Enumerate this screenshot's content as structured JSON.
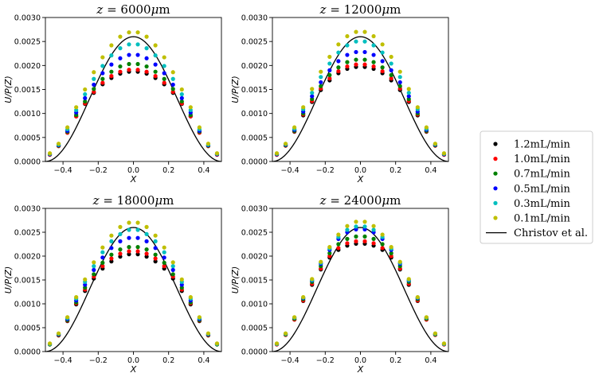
{
  "chart_data": {
    "type": "scatter",
    "x_ticks": [
      -0.4,
      -0.2,
      0.0,
      0.2,
      0.4
    ],
    "x_tick_labels": [
      "−0.4",
      "−0.2",
      "0.0",
      "0.2",
      "0.4"
    ],
    "y_ticks": [
      0,
      0.0005,
      0.001,
      0.0015,
      0.002,
      0.0025,
      0.003
    ],
    "y_tick_labels": [
      "0.0000",
      "0.0005",
      "0.0010",
      "0.0015",
      "0.0020",
      "0.0025",
      "0.0030"
    ],
    "xlim": [
      -0.5,
      0.5
    ],
    "ylim": [
      0,
      0.003
    ],
    "xlabel": "X",
    "ylabel": "U/P(Z)",
    "x_points": [
      -0.475,
      -0.425,
      -0.375,
      -0.325,
      -0.275,
      -0.225,
      -0.175,
      -0.125,
      -0.075,
      -0.025,
      0.025,
      0.075,
      0.125,
      0.175,
      0.225,
      0.275,
      0.325,
      0.375,
      0.425,
      0.475
    ],
    "series": [
      {
        "name": "1.2mL/min",
        "color": "#000000"
      },
      {
        "name": "1.0mL/min",
        "color": "#ff0000"
      },
      {
        "name": "0.7mL/min",
        "color": "#008000"
      },
      {
        "name": "0.5mL/min",
        "color": "#0000ff"
      },
      {
        "name": "0.3mL/min",
        "color": "#00bfbf"
      },
      {
        "name": "0.1mL/min",
        "color": "#bfbf00"
      }
    ],
    "reference_curve": {
      "name": "Christov et al.",
      "color": "#000000",
      "peak": 0.0026
    },
    "panels": [
      {
        "title_pre": "",
        "title_z": "z",
        "title_mid": " = 6000",
        "title_mu": "μ",
        "title_post": "m",
        "series": [
          {
            "name": "1.2mL/min",
            "values": [
              0.00014,
              0.00032,
              0.0006,
              0.00094,
              0.0012,
              0.00143,
              0.00161,
              0.00174,
              0.00183,
              0.00187,
              0.00187,
              0.00183,
              0.00174,
              0.00161,
              0.00143,
              0.0012,
              0.00094,
              0.0006,
              0.00032,
              0.00014
            ]
          },
          {
            "name": "1.0mL/min",
            "values": [
              0.00014,
              0.00032,
              0.0006,
              0.00094,
              0.00121,
              0.00145,
              0.00164,
              0.00178,
              0.00187,
              0.00191,
              0.00191,
              0.00187,
              0.00178,
              0.00164,
              0.00145,
              0.00121,
              0.00094,
              0.0006,
              0.00032,
              0.00014
            ]
          },
          {
            "name": "0.7mL/min",
            "values": [
              0.00015,
              0.00033,
              0.00062,
              0.00097,
              0.00125,
              0.00151,
              0.00172,
              0.00187,
              0.00198,
              0.00203,
              0.00203,
              0.00198,
              0.00187,
              0.00172,
              0.00151,
              0.00125,
              0.00097,
              0.00062,
              0.00033,
              0.00015
            ]
          },
          {
            "name": "0.5mL/min",
            "values": [
              0.00015,
              0.00034,
              0.00064,
              0.00102,
              0.00132,
              0.0016,
              0.00184,
              0.00202,
              0.00215,
              0.00222,
              0.00222,
              0.00215,
              0.00202,
              0.00184,
              0.0016,
              0.00132,
              0.00102,
              0.00064,
              0.00034,
              0.00015
            ]
          },
          {
            "name": "0.3mL/min",
            "values": [
              0.00016,
              0.00035,
              0.00067,
              0.00107,
              0.0014,
              0.00172,
              0.00199,
              0.00221,
              0.00236,
              0.00244,
              0.00244,
              0.00236,
              0.00221,
              0.00199,
              0.00172,
              0.0014,
              0.00107,
              0.00067,
              0.00035,
              0.00016
            ]
          },
          {
            "name": "0.1mL/min",
            "values": [
              0.00017,
              0.00037,
              0.00071,
              0.00113,
              0.0015,
              0.00186,
              0.00217,
              0.00242,
              0.0026,
              0.00269,
              0.00269,
              0.0026,
              0.00242,
              0.00217,
              0.00186,
              0.0015,
              0.00113,
              0.00071,
              0.00037,
              0.00017
            ]
          }
        ]
      },
      {
        "title_pre": "",
        "title_z": "z",
        "title_mid": " = 12000",
        "title_mu": "μ",
        "title_post": "m",
        "series": [
          {
            "name": "1.2mL/min",
            "values": [
              0.00014,
              0.00033,
              0.00062,
              0.00096,
              0.00124,
              0.00149,
              0.00169,
              0.00184,
              0.00193,
              0.00197,
              0.00197,
              0.00193,
              0.00184,
              0.00169,
              0.00149,
              0.00124,
              0.00096,
              0.00062,
              0.00033,
              0.00014
            ]
          },
          {
            "name": "1.0mL/min",
            "values": [
              0.00014,
              0.00033,
              0.00063,
              0.00098,
              0.00126,
              0.00152,
              0.00173,
              0.00188,
              0.00198,
              0.00202,
              0.00202,
              0.00198,
              0.00188,
              0.00173,
              0.00152,
              0.00126,
              0.00098,
              0.00063,
              0.00033,
              0.00014
            ]
          },
          {
            "name": "0.7mL/min",
            "values": [
              0.00015,
              0.00034,
              0.00064,
              0.001,
              0.0013,
              0.00157,
              0.0018,
              0.00196,
              0.00207,
              0.00212,
              0.00212,
              0.00207,
              0.00196,
              0.0018,
              0.00157,
              0.0013,
              0.001,
              0.00064,
              0.00034,
              0.00015
            ]
          },
          {
            "name": "0.5mL/min",
            "values": [
              0.00015,
              0.00035,
              0.00066,
              0.00104,
              0.00136,
              0.00165,
              0.0019,
              0.00209,
              0.00222,
              0.00228,
              0.00228,
              0.00222,
              0.00209,
              0.0019,
              0.00165,
              0.00136,
              0.00104,
              0.00066,
              0.00035,
              0.00015
            ]
          },
          {
            "name": "0.3mL/min",
            "values": [
              0.00016,
              0.00036,
              0.00068,
              0.00109,
              0.00143,
              0.00176,
              0.00204,
              0.00227,
              0.00242,
              0.0025,
              0.0025,
              0.00242,
              0.00227,
              0.00204,
              0.00176,
              0.00143,
              0.00109,
              0.00068,
              0.00036,
              0.00016
            ]
          },
          {
            "name": "0.1mL/min",
            "values": [
              0.00017,
              0.00037,
              0.00071,
              0.00113,
              0.00151,
              0.00187,
              0.00218,
              0.00244,
              0.00261,
              0.0027,
              0.0027,
              0.00261,
              0.00244,
              0.00218,
              0.00187,
              0.00151,
              0.00113,
              0.00071,
              0.00037,
              0.00017
            ]
          }
        ]
      },
      {
        "title_pre": "",
        "title_z": "z",
        "title_mid": " = 18000",
        "title_mu": "μ",
        "title_post": "m",
        "series": [
          {
            "name": "1.2mL/min",
            "values": [
              0.00015,
              0.00034,
              0.00064,
              0.00099,
              0.00127,
              0.00153,
              0.00174,
              0.00189,
              0.00199,
              0.00204,
              0.00204,
              0.00199,
              0.00189,
              0.00174,
              0.00153,
              0.00127,
              0.00099,
              0.00064,
              0.00034,
              0.00015
            ]
          },
          {
            "name": "1.0mL/min",
            "values": [
              0.00015,
              0.00034,
              0.00065,
              0.00101,
              0.0013,
              0.00157,
              0.00179,
              0.00195,
              0.00205,
              0.0021,
              0.0021,
              0.00205,
              0.00195,
              0.00179,
              0.00157,
              0.0013,
              0.00101,
              0.00065,
              0.00034,
              0.00015
            ]
          },
          {
            "name": "0.7mL/min",
            "values": [
              0.00015,
              0.00035,
              0.00066,
              0.00103,
              0.00134,
              0.00162,
              0.00186,
              0.00203,
              0.00214,
              0.00219,
              0.00219,
              0.00214,
              0.00203,
              0.00186,
              0.00162,
              0.00134,
              0.00103,
              0.00066,
              0.00035,
              0.00015
            ]
          },
          {
            "name": "0.5mL/min",
            "values": [
              0.00016,
              0.00036,
              0.00068,
              0.00107,
              0.0014,
              0.00171,
              0.00197,
              0.00217,
              0.00231,
              0.00238,
              0.00238,
              0.00231,
              0.00217,
              0.00197,
              0.00171,
              0.0014,
              0.00107,
              0.00068,
              0.00036,
              0.00016
            ]
          },
          {
            "name": "0.3mL/min",
            "values": [
              0.00016,
              0.00037,
              0.0007,
              0.00111,
              0.00146,
              0.00179,
              0.00208,
              0.00231,
              0.00246,
              0.00255,
              0.00255,
              0.00246,
              0.00231,
              0.00208,
              0.00179,
              0.00146,
              0.00111,
              0.0007,
              0.00037,
              0.00016
            ]
          },
          {
            "name": "0.1mL/min",
            "values": [
              0.00017,
              0.00038,
              0.00072,
              0.00114,
              0.00151,
              0.00187,
              0.00218,
              0.00243,
              0.00261,
              0.0027,
              0.0027,
              0.00261,
              0.00243,
              0.00218,
              0.00187,
              0.00151,
              0.00114,
              0.00072,
              0.00038,
              0.00017
            ]
          }
        ]
      },
      {
        "title_pre": "",
        "title_z": "z",
        "title_mid": " = 24000",
        "title_mu": "μ",
        "title_post": "m",
        "series": [
          {
            "name": "1.2mL/min",
            "values": [
              0.00015,
              0.00035,
              0.00067,
              0.00106,
              0.0014,
              0.00172,
              0.00197,
              0.00213,
              0.00222,
              0.00226,
              0.00226,
              0.00222,
              0.00213,
              0.00197,
              0.00172,
              0.0014,
              0.00106,
              0.00067,
              0.00035,
              0.00015
            ]
          },
          {
            "name": "1.0mL/min",
            "values": [
              0.00015,
              0.00035,
              0.00067,
              0.00107,
              0.00142,
              0.00174,
              0.002,
              0.00217,
              0.00227,
              0.00231,
              0.00231,
              0.00227,
              0.00217,
              0.002,
              0.00174,
              0.00142,
              0.00107,
              0.00067,
              0.00035,
              0.00015
            ]
          },
          {
            "name": "0.7mL/min",
            "values": [
              0.00016,
              0.00036,
              0.00069,
              0.0011,
              0.00146,
              0.00179,
              0.00206,
              0.00225,
              0.00236,
              0.00241,
              0.00241,
              0.00236,
              0.00225,
              0.00206,
              0.00179,
              0.00146,
              0.0011,
              0.00069,
              0.00036,
              0.00016
            ]
          },
          {
            "name": "0.5mL/min",
            "values": [
              0.00016,
              0.00037,
              0.00071,
              0.00112,
              0.00149,
              0.00184,
              0.00213,
              0.00236,
              0.0025,
              0.00256,
              0.00256,
              0.0025,
              0.00236,
              0.00213,
              0.00184,
              0.00149,
              0.00112,
              0.00071,
              0.00037,
              0.00016
            ]
          },
          {
            "name": "0.3mL/min",
            "values": [
              0.00016,
              0.00037,
              0.00071,
              0.00113,
              0.0015,
              0.00186,
              0.00216,
              0.0024,
              0.00255,
              0.00262,
              0.00262,
              0.00255,
              0.0024,
              0.00216,
              0.00186,
              0.0015,
              0.00113,
              0.00071,
              0.00037,
              0.00016
            ]
          },
          {
            "name": "0.1mL/min",
            "values": [
              0.00017,
              0.00038,
              0.00072,
              0.00114,
              0.00152,
              0.00188,
              0.00219,
              0.00245,
              0.00263,
              0.00272,
              0.00272,
              0.00263,
              0.00245,
              0.00219,
              0.00188,
              0.00152,
              0.00114,
              0.00072,
              0.00038,
              0.00017
            ]
          }
        ]
      }
    ],
    "legend": {
      "placement": "right",
      "entries": [
        "1.2mL/min",
        "1.0mL/min",
        "0.7mL/min",
        "0.5mL/min",
        "0.3mL/min",
        "0.1mL/min",
        "Christov et al."
      ]
    },
    "grid": false
  }
}
